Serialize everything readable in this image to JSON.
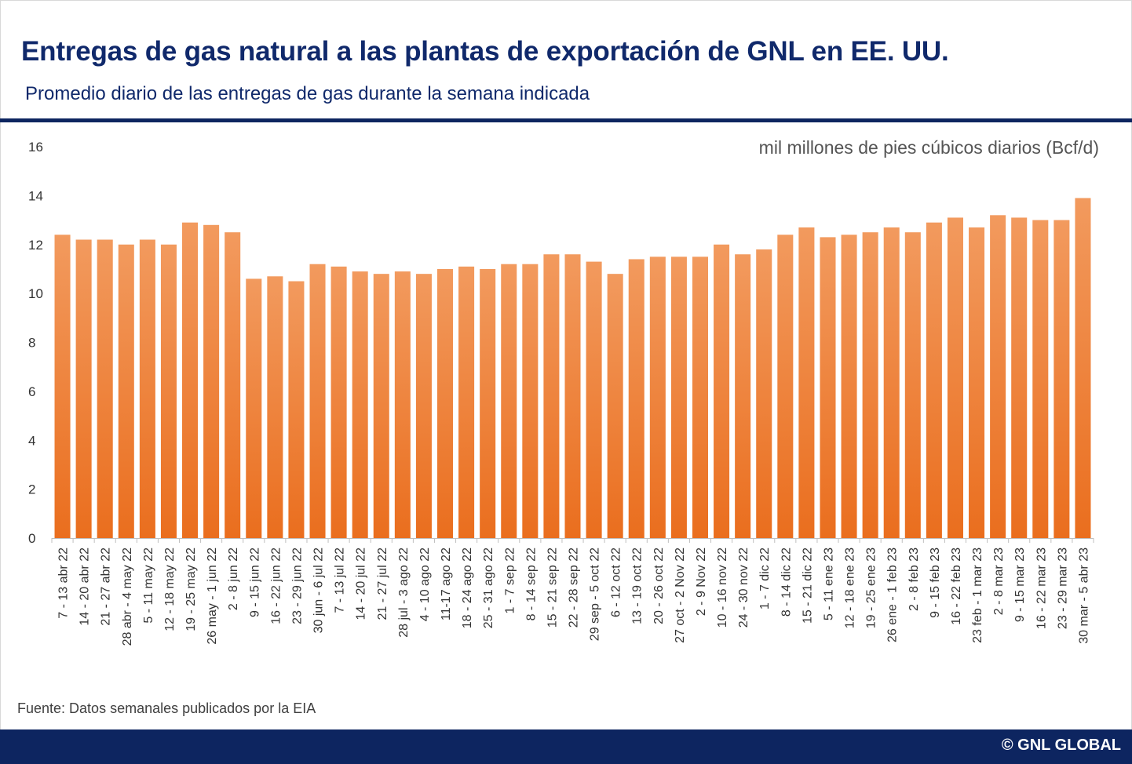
{
  "chart_data": {
    "type": "bar",
    "title": "Entregas de gas natural a las plantas de exportación de GNL en EE. UU.",
    "subtitle": "Promedio diario de las entregas de gas durante la semana indicada",
    "unit_label": "mil millones de pies cúbicos diarios (Bcf/d)",
    "ylim": [
      0,
      16
    ],
    "yticks": [
      0,
      2,
      4,
      6,
      8,
      10,
      12,
      14,
      16
    ],
    "grid": false,
    "categories": [
      "7 - 13 abr 22",
      "14 - 20 abr 22",
      "21 - 27 abr 22",
      "28 abr - 4 may 22",
      "5 - 11 may 22",
      "12 - 18 may 22",
      "19 - 25 may 22",
      "26 may - 1 jun 22",
      "2 - 8 jun 22",
      "9 - 15 jun 22",
      "16 - 22 jun 22",
      "23 - 29 jun 22",
      "30 jun - 6 jul 22",
      "7 - 13 jul 22",
      "14 - 20 jul 22",
      "21 - 27 jul 22",
      "28 jul - 3 ago 22",
      "4 - 10 ago 22",
      "11-17 ago 22",
      "18 - 24 ago 22",
      "25 - 31 ago 22",
      "1 - 7 sep 22",
      "8 - 14 sep 22",
      "15 - 21 sep 22",
      "22 - 28 sep 22",
      "29 sep - 5 oct 22",
      "6 - 12 oct 22",
      "13 - 19 oct 22",
      "20 - 26 oct 22",
      "27 oct - 2 Nov 22",
      "2 - 9 Nov 22",
      "10 - 16 nov 22",
      "24 - 30 nov 22",
      "1 - 7 dic 22",
      "8 - 14 dic 22",
      "15 - 21 dic 22",
      "5 - 11 ene 23",
      "12 - 18 ene 23",
      "19 - 25 ene 23",
      "26 ene - 1 feb 23",
      "2 - 8 feb 23",
      "9 - 15 feb 23",
      "16 - 22 feb 23",
      "23 feb - 1 mar 23",
      "2 - 8 mar 23",
      "9 - 15 mar 23",
      "16 - 22 mar 23",
      "23 - 29 mar 23",
      "30 mar - 5 abr 23"
    ],
    "values": [
      12.4,
      12.2,
      12.2,
      12.0,
      12.2,
      12.0,
      12.9,
      12.8,
      12.5,
      10.6,
      10.7,
      10.5,
      11.2,
      11.1,
      10.9,
      10.8,
      10.9,
      10.8,
      11.0,
      11.1,
      11.0,
      11.2,
      11.2,
      11.6,
      11.6,
      11.3,
      10.8,
      11.4,
      11.5,
      11.5,
      11.5,
      12.0,
      11.6,
      11.8,
      12.4,
      12.7,
      12.3,
      12.4,
      12.5,
      12.7,
      12.5,
      12.9,
      13.1,
      12.7,
      13.2,
      13.1,
      13.0,
      13.0,
      13.9
    ],
    "colors": {
      "bar_top": "#f29a5e",
      "bar_bottom": "#ea6e1e",
      "axis": "#bfbfbf",
      "tick_text": "#333333"
    }
  },
  "source": "Fuente: Datos semanales publicados por la EIA",
  "brand": "© GNL GLOBAL"
}
